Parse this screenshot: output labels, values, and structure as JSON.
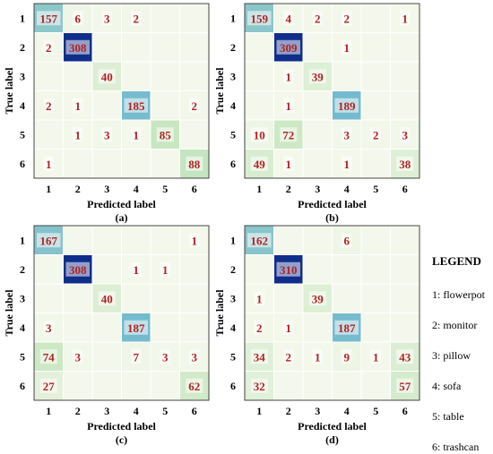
{
  "chart_data": [
    {
      "type": "heatmap",
      "caption": "(a)",
      "xlabel": "Predicted label",
      "ylabel": "True label",
      "x_ticks": [
        "1",
        "2",
        "3",
        "4",
        "5",
        "6"
      ],
      "y_ticks": [
        "1",
        "2",
        "3",
        "4",
        "5",
        "6"
      ],
      "matrix": [
        [
          157,
          6,
          3,
          2,
          null,
          null
        ],
        [
          2,
          308,
          null,
          null,
          null,
          null
        ],
        [
          null,
          null,
          40,
          null,
          null,
          null
        ],
        [
          2,
          1,
          null,
          185,
          null,
          2
        ],
        [
          null,
          1,
          3,
          1,
          85,
          null
        ],
        [
          1,
          null,
          null,
          null,
          null,
          88
        ]
      ]
    },
    {
      "type": "heatmap",
      "caption": "(b)",
      "xlabel": "Predicted label",
      "ylabel": "True label",
      "x_ticks": [
        "1",
        "2",
        "3",
        "4",
        "5",
        "6"
      ],
      "y_ticks": [
        "1",
        "2",
        "3",
        "4",
        "5",
        "6"
      ],
      "matrix": [
        [
          159,
          4,
          2,
          2,
          null,
          1
        ],
        [
          null,
          309,
          null,
          1,
          null,
          null
        ],
        [
          null,
          1,
          39,
          null,
          null,
          null
        ],
        [
          null,
          1,
          null,
          189,
          null,
          null
        ],
        [
          10,
          72,
          null,
          3,
          2,
          3
        ],
        [
          49,
          1,
          null,
          1,
          null,
          38
        ]
      ]
    },
    {
      "type": "heatmap",
      "caption": "(c)",
      "xlabel": "Predicted label",
      "ylabel": "True label",
      "x_ticks": [
        "1",
        "2",
        "3",
        "4",
        "5",
        "6"
      ],
      "y_ticks": [
        "1",
        "2",
        "3",
        "4",
        "5",
        "6"
      ],
      "matrix": [
        [
          167,
          null,
          null,
          null,
          null,
          1
        ],
        [
          null,
          308,
          null,
          1,
          1,
          null
        ],
        [
          null,
          null,
          40,
          null,
          null,
          null
        ],
        [
          3,
          null,
          null,
          187,
          null,
          null
        ],
        [
          74,
          3,
          null,
          7,
          3,
          3
        ],
        [
          27,
          null,
          null,
          null,
          null,
          62
        ]
      ]
    },
    {
      "type": "heatmap",
      "caption": "(d)",
      "xlabel": "Predicted label",
      "ylabel": "True label",
      "x_ticks": [
        "1",
        "2",
        "3",
        "4",
        "5",
        "6"
      ],
      "y_ticks": [
        "1",
        "2",
        "3",
        "4",
        "5",
        "6"
      ],
      "matrix": [
        [
          162,
          null,
          null,
          6,
          null,
          null
        ],
        [
          null,
          310,
          null,
          null,
          null,
          null
        ],
        [
          1,
          null,
          39,
          null,
          null,
          null
        ],
        [
          2,
          1,
          null,
          187,
          null,
          null
        ],
        [
          34,
          2,
          1,
          9,
          1,
          43
        ],
        [
          32,
          null,
          null,
          null,
          null,
          57
        ]
      ]
    }
  ],
  "legend": {
    "title": "LEGEND",
    "items": [
      "1: flowerpot",
      "2: monitor",
      "3: pillow",
      "4: sofa",
      "5: table",
      "6: trashcan"
    ]
  },
  "colors": {
    "text": "#b22222",
    "text_on_dark": "#ffffff",
    "grid": "#ffffff",
    "frame": "#444444",
    "colormap": [
      "#f4f8ec",
      "#c8e6c0",
      "#72b9cf",
      "#0f2e8a"
    ]
  }
}
